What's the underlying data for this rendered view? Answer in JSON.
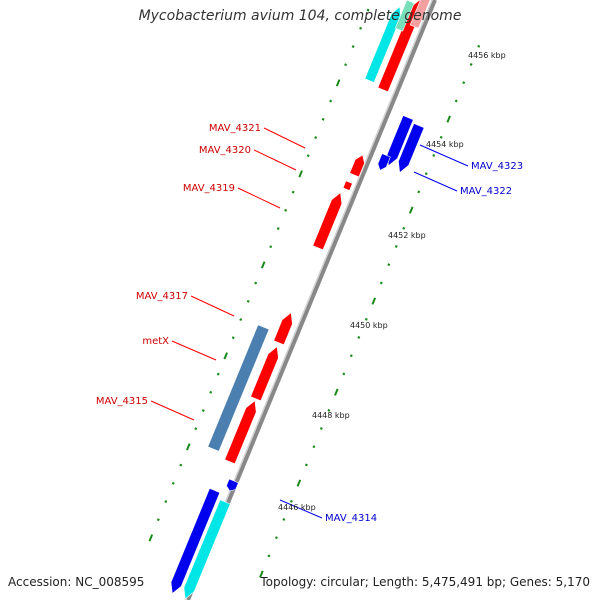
{
  "title": "Mycobacterium avium 104, complete genome",
  "footer": {
    "accession": "Accession: NC_008595",
    "summary": "Topology: circular; Length: 5,475,491 bp; Genes: 5,170"
  },
  "colors": {
    "forward_gene": "#ff0000",
    "reverse_gene": "#0000ee",
    "cyan_gene": "#00e5e5",
    "steelblue_feature": "#4a7fb0",
    "backbone": "#888888",
    "tick": "#1a8a1a",
    "fwd_label": "#cc0000",
    "rev_label": "#0000cc"
  },
  "scale_labels": [
    "4446 kbp",
    "4448 kbp",
    "4450 kbp",
    "4452 kbp",
    "4454 kbp",
    "4456 kbp"
  ],
  "forward_labels": [
    "MAV_4321",
    "MAV_4320",
    "MAV_4319",
    "MAV_4317",
    "metX",
    "MAV_4315"
  ],
  "reverse_labels": [
    "MAV_4323",
    "MAV_4322",
    "MAV_4314"
  ]
}
